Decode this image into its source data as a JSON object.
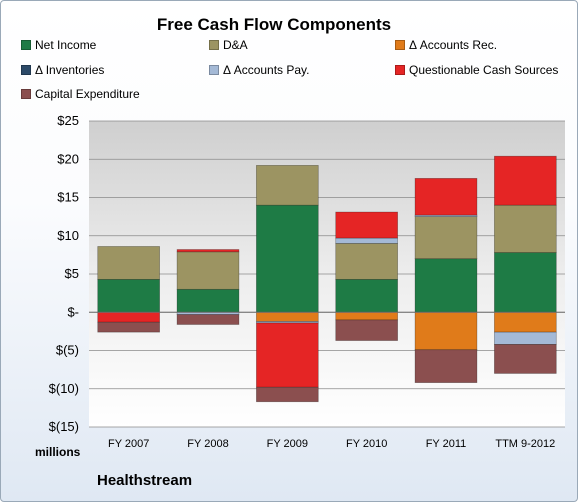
{
  "chart_data": {
    "type": "bar",
    "stacked": true,
    "title": "Free Cash Flow Components",
    "categories": [
      "FY 2007",
      "FY 2008",
      "FY 2009",
      "FY 2010",
      "FY 2011",
      "TTM 9-2012"
    ],
    "ylabel": "",
    "ylim": [
      -15,
      25
    ],
    "yticks": [
      25,
      20,
      15,
      10,
      5,
      0,
      -5,
      -10,
      -15
    ],
    "ytick_labels": [
      "$25",
      "$20",
      "$15",
      "$10",
      "$5",
      "$-",
      "$(5)",
      "$(10)",
      "$(15)"
    ],
    "grid": true,
    "legend_position": "top",
    "series": [
      {
        "name": "Net Income",
        "color": "#1e7b45",
        "values": [
          4.3,
          3.0,
          14.0,
          4.3,
          7.0,
          7.8
        ]
      },
      {
        "name": "D&A",
        "color": "#9c9462",
        "values": [
          4.3,
          4.9,
          5.2,
          4.7,
          5.5,
          6.2
        ]
      },
      {
        "name": "Δ Accounts Rec.",
        "color": "#e07b1a",
        "values": [
          0,
          0,
          -1.2,
          -1.0,
          -4.9,
          -2.6
        ]
      },
      {
        "name": "Δ Inventories",
        "color": "#2c4a68",
        "values": [
          0,
          0,
          0,
          0,
          0,
          0
        ]
      },
      {
        "name": "Δ Accounts Pay.",
        "color": "#a4b9d6",
        "values": [
          0,
          -0.3,
          -0.2,
          0.7,
          0.2,
          -1.6
        ]
      },
      {
        "name": "Questionable Cash Sources",
        "color": "#e52525",
        "values": [
          -1.3,
          0.3,
          -8.4,
          3.4,
          4.8,
          6.4
        ]
      },
      {
        "name": "Capital Expenditure",
        "color": "#8b4f4f",
        "values": [
          -1.3,
          -1.3,
          -1.9,
          -2.7,
          -4.3,
          -3.8
        ]
      }
    ]
  },
  "units_label": "millions",
  "company": "Healthstream"
}
